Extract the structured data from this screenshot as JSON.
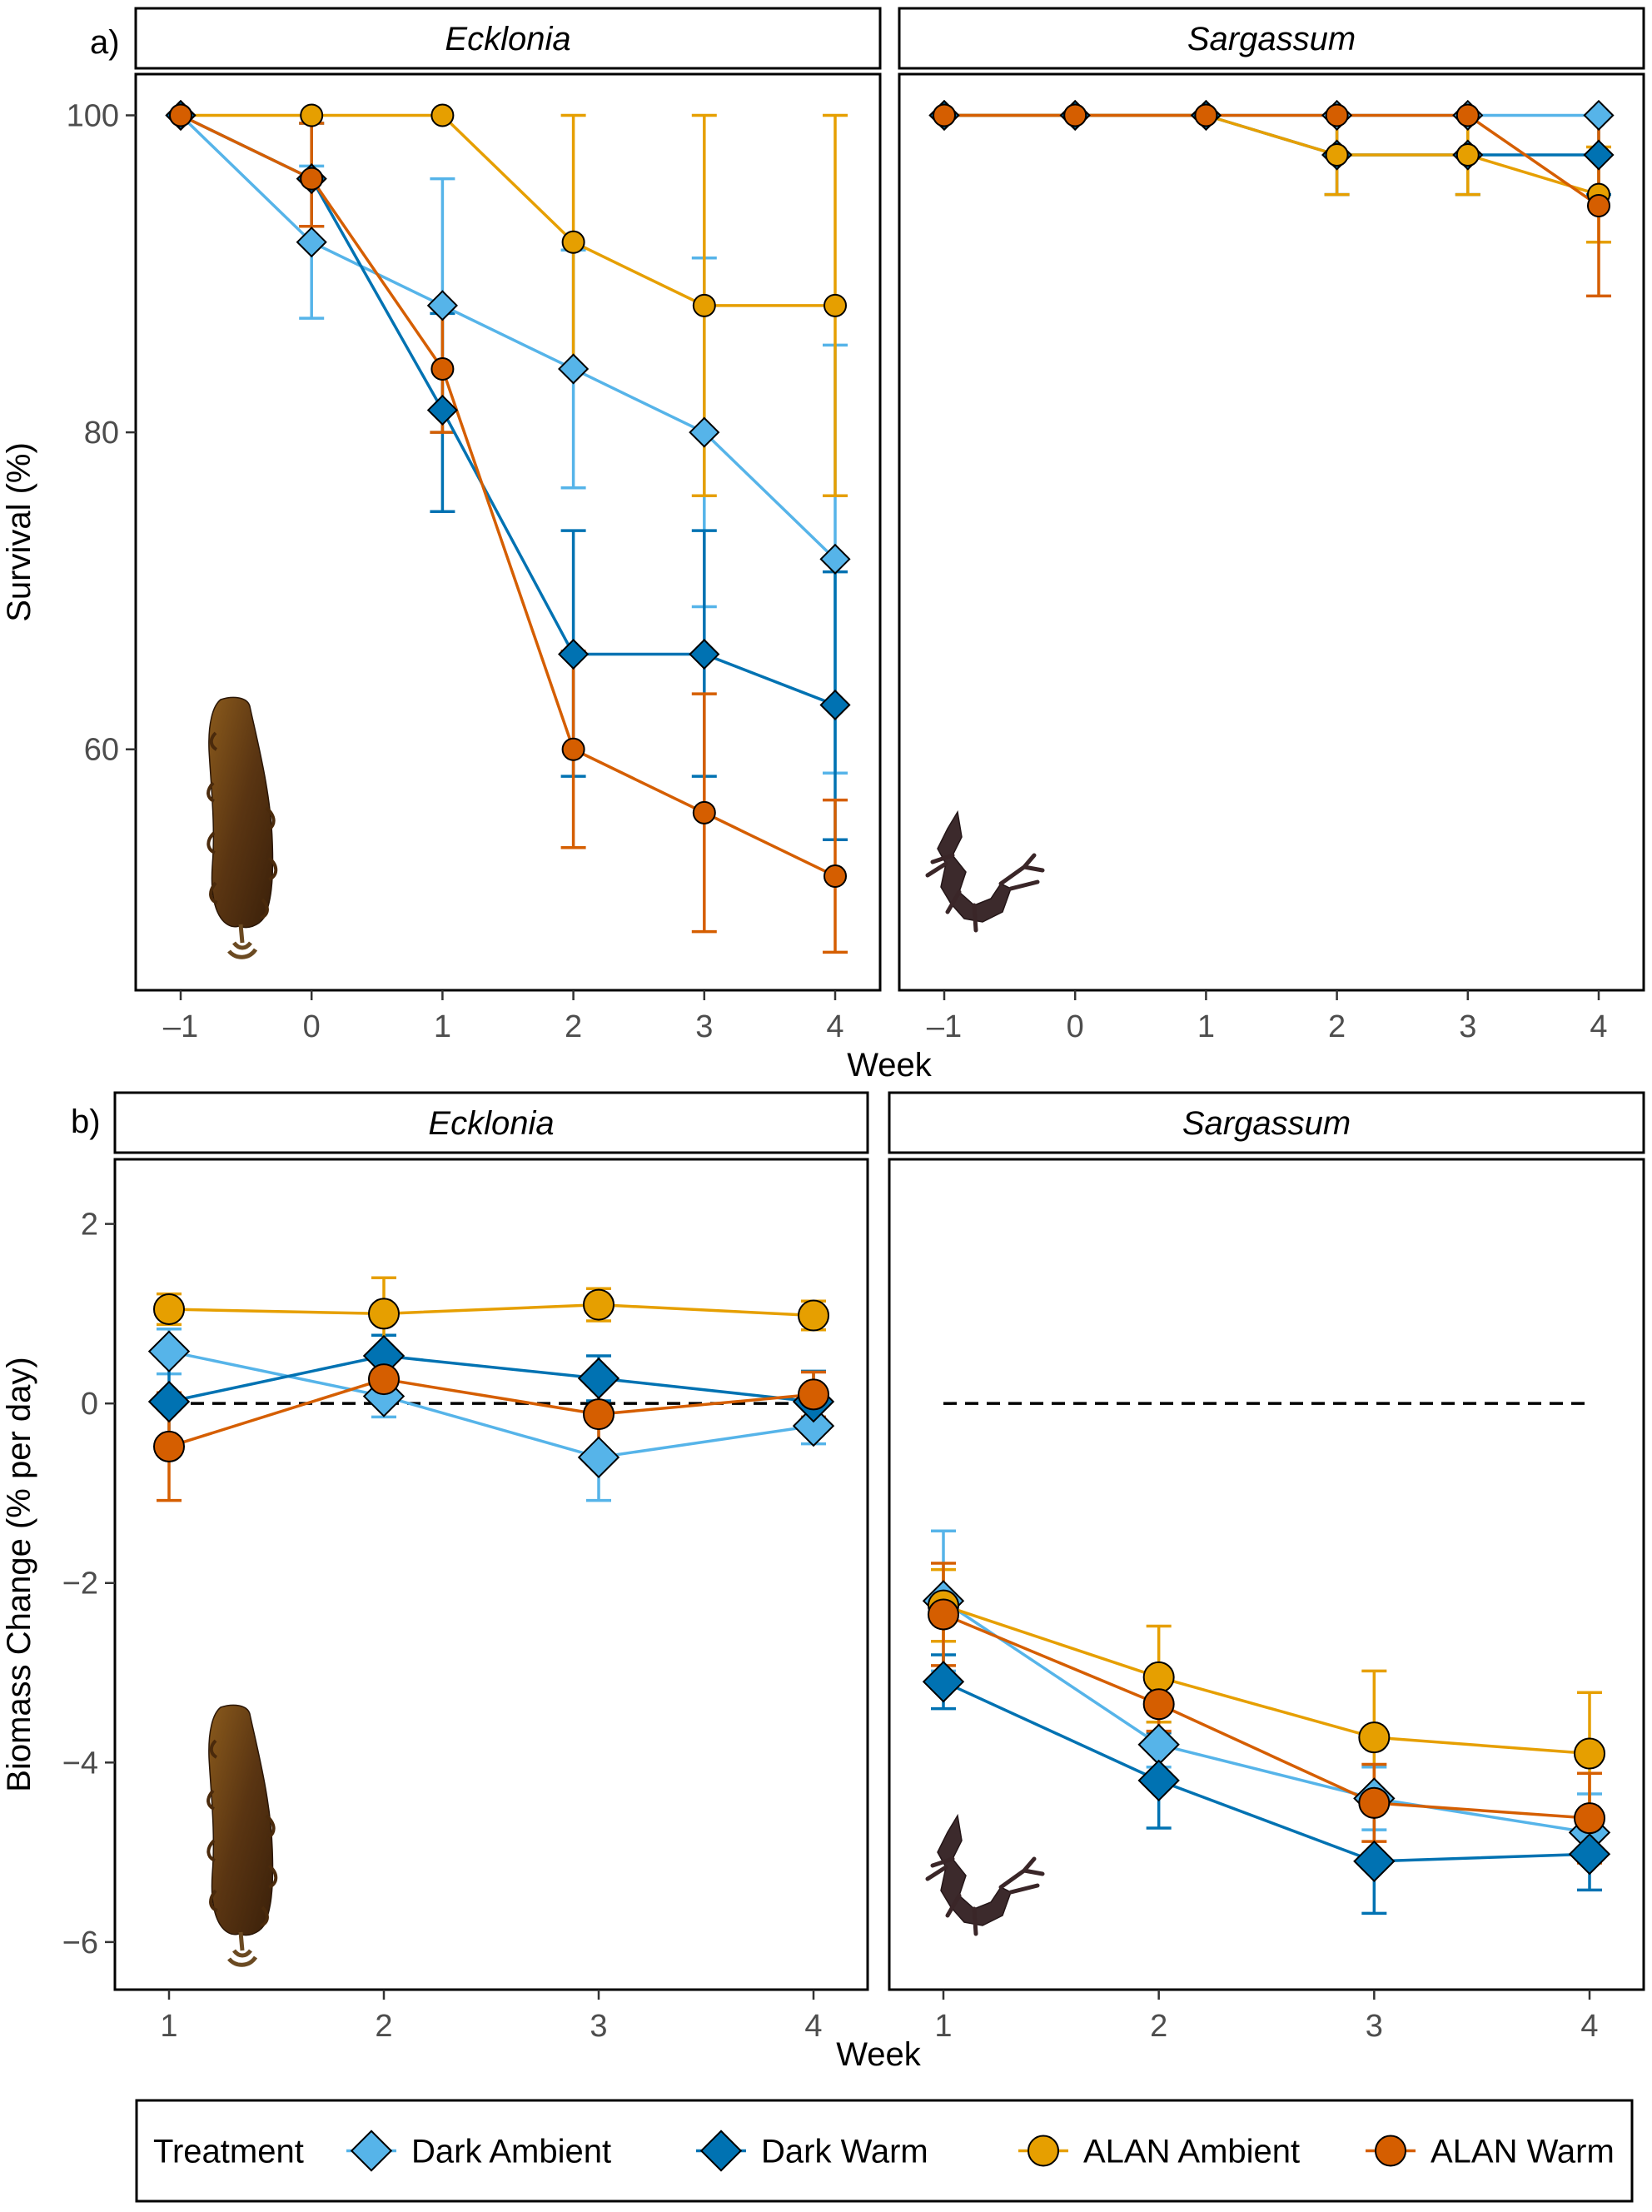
{
  "panel_labels": {
    "a": "a)",
    "b": "b)"
  },
  "legend": {
    "title": "Treatment",
    "items": [
      {
        "label": "Dark Ambient",
        "color": "#56B4E9",
        "shape": "diamond"
      },
      {
        "label": "Dark Warm",
        "color": "#0072B2",
        "shape": "diamond"
      },
      {
        "label": "ALAN Ambient",
        "color": "#E69F00",
        "shape": "circle"
      },
      {
        "label": "ALAN Warm",
        "color": "#D55E00",
        "shape": "circle"
      }
    ]
  },
  "chart_data": [
    {
      "id": "survival",
      "type": "line",
      "ylabel": "Survival (%)",
      "xlabel": "Week",
      "x": [
        -1,
        0,
        1,
        2,
        3,
        4
      ],
      "xticklabels": [
        "–1",
        "0",
        "1",
        "2",
        "3",
        "4"
      ],
      "yticks": [
        60,
        80,
        100
      ],
      "ylim": [
        44.8,
        102.6
      ],
      "facets": [
        {
          "title": "Ecklonia",
          "series": [
            {
              "name": "Dark Ambient",
              "values": [
                100,
                92,
                88,
                84,
                80,
                72
              ],
              "err_low": [
                100,
                87.2,
                80,
                76.5,
                69,
                58.5
              ],
              "err_high": [
                100,
                96.8,
                96,
                91.5,
                91,
                85.5
              ]
            },
            {
              "name": "Dark Warm",
              "values": [
                100,
                96,
                81.4,
                66,
                66,
                62.8
              ],
              "err_low": [
                100,
                93,
                75,
                58.3,
                58.3,
                54.3
              ],
              "err_high": [
                100,
                99.5,
                87.5,
                73.8,
                73.8,
                71.2
              ]
            },
            {
              "name": "ALAN Ambient",
              "values": [
                100,
                100,
                100,
                92,
                88,
                88
              ],
              "err_low": [
                100,
                100,
                100,
                84,
                76,
                76
              ],
              "err_high": [
                100,
                100,
                100,
                100,
                100,
                100
              ]
            },
            {
              "name": "ALAN Warm",
              "values": [
                100,
                96,
                84,
                60,
                56,
                52
              ],
              "err_low": [
                100,
                93,
                80,
                53.8,
                48.5,
                47.2
              ],
              "err_high": [
                100,
                99.5,
                88,
                66.2,
                63.5,
                56.8
              ]
            }
          ]
        },
        {
          "title": "Sargassum",
          "series": [
            {
              "name": "Dark Ambient",
              "values": [
                100,
                100,
                100,
                100,
                100,
                100
              ],
              "err_low": [
                100,
                100,
                100,
                100,
                100,
                100
              ],
              "err_high": [
                100,
                100,
                100,
                100,
                100,
                100
              ]
            },
            {
              "name": "Dark Warm",
              "values": [
                100,
                100,
                100,
                97.5,
                97.5,
                97.5
              ],
              "err_low": [
                100,
                100,
                100,
                95,
                95,
                95
              ],
              "err_high": [
                100,
                100,
                100,
                100,
                100,
                100
              ]
            },
            {
              "name": "ALAN Ambient",
              "values": [
                100,
                100,
                100,
                97.5,
                97.5,
                95
              ],
              "err_low": [
                100,
                100,
                100,
                95,
                95,
                92
              ],
              "err_high": [
                100,
                100,
                100,
                100,
                100,
                98
              ]
            },
            {
              "name": "ALAN Warm",
              "values": [
                100,
                100,
                100,
                100,
                100,
                94.3
              ],
              "err_low": [
                100,
                100,
                100,
                100,
                100,
                88.6
              ],
              "err_high": [
                100,
                100,
                100,
                100,
                100,
                100
              ]
            }
          ]
        }
      ]
    },
    {
      "id": "biomass",
      "type": "line",
      "ylabel": "Biomass Change (% per day)",
      "xlabel": "Week",
      "x": [
        1,
        2,
        3,
        4
      ],
      "xticklabels": [
        "1",
        "2",
        "3",
        "4"
      ],
      "yticks": [
        -6,
        -4,
        -2,
        0,
        2
      ],
      "ylim": [
        -6.53,
        2.72
      ],
      "reference_line": 0,
      "facets": [
        {
          "title": "Ecklonia",
          "series": [
            {
              "name": "Dark Ambient",
              "values": [
                0.58,
                0.08,
                -0.6,
                -0.25
              ],
              "err_low": [
                0.33,
                -0.15,
                -1.08,
                -0.45
              ],
              "err_high": [
                0.83,
                0.31,
                -0.12,
                -0.05
              ]
            },
            {
              "name": "Dark Warm",
              "values": [
                0.02,
                0.53,
                0.28,
                0.02
              ],
              "err_low": [
                -0.52,
                0.3,
                0.03,
                -0.32
              ],
              "err_high": [
                0.56,
                0.76,
                0.53,
                0.36
              ]
            },
            {
              "name": "ALAN Ambient",
              "values": [
                1.05,
                1.0,
                1.1,
                0.98
              ],
              "err_low": [
                0.88,
                0.6,
                0.92,
                0.82
              ],
              "err_high": [
                1.22,
                1.4,
                1.28,
                1.14
              ]
            },
            {
              "name": "ALAN Warm",
              "values": [
                -0.48,
                0.27,
                -0.12,
                0.1
              ],
              "err_low": [
                -1.08,
                0.0,
                -0.52,
                -0.15
              ],
              "err_high": [
                0.12,
                0.54,
                0.28,
                0.35
              ]
            }
          ]
        },
        {
          "title": "Sargassum",
          "series": [
            {
              "name": "Dark Ambient",
              "values": [
                -2.2,
                -3.8,
                -4.4,
                -4.78
              ],
              "err_low": [
                -2.98,
                -4.05,
                -4.75,
                -5.05
              ],
              "err_high": [
                -1.42,
                -3.55,
                -4.05,
                -4.35
              ]
            },
            {
              "name": "Dark Warm",
              "values": [
                -3.1,
                -4.2,
                -5.1,
                -5.02
              ],
              "err_low": [
                -3.4,
                -4.73,
                -5.68,
                -5.42
              ],
              "err_high": [
                -2.8,
                -3.67,
                -4.52,
                -4.62
              ]
            },
            {
              "name": "ALAN Ambient",
              "values": [
                -2.25,
                -3.05,
                -3.72,
                -3.9
              ],
              "err_low": [
                -2.65,
                -3.55,
                -4.45,
                -4.55
              ],
              "err_high": [
                -1.85,
                -2.48,
                -2.98,
                -3.22
              ]
            },
            {
              "name": "ALAN Warm",
              "values": [
                -2.35,
                -3.35,
                -4.45,
                -4.62
              ],
              "err_low": [
                -2.92,
                -3.65,
                -4.88,
                -5.12
              ],
              "err_high": [
                -1.78,
                -3.05,
                -4.02,
                -4.12
              ]
            }
          ]
        }
      ]
    }
  ]
}
